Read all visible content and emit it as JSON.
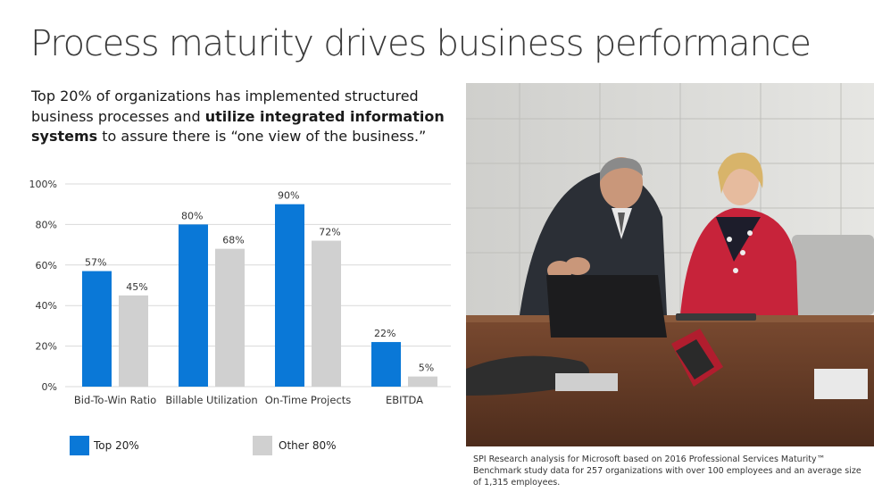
{
  "title": "Process maturity drives business performance",
  "subtitle": {
    "part1": "Top 20% of organizations has implemented structured business processes and ",
    "bold": "utilize integrated information systems",
    "part2": " to assure there is “one view of the business.”"
  },
  "chart_data": {
    "type": "bar",
    "categories": [
      "Bid-To-Win Ratio",
      "Billable Utilization",
      "On-Time Projects",
      "EBITDA"
    ],
    "series": [
      {
        "name": "Top 20%",
        "color": "#0a78d7",
        "values": [
          57,
          80,
          90,
          22
        ],
        "labels": [
          "57%",
          "80%",
          "90%",
          "22%"
        ]
      },
      {
        "name": "Other 80%",
        "color": "#d0d0d0",
        "values": [
          45,
          68,
          72,
          5
        ],
        "labels": [
          "45%",
          "68%",
          "72%",
          "5%"
        ]
      }
    ],
    "ylim": [
      0,
      100
    ],
    "yticks": [
      0,
      20,
      40,
      60,
      80,
      100
    ],
    "ytick_labels": [
      "0%",
      "20%",
      "40%",
      "60%",
      "80%",
      "100%"
    ],
    "grid": true,
    "legend_position": "bottom"
  },
  "footnote": "SPI Research analysis for Microsoft based on 2016 Professional Services Maturity™ Benchmark study data for 257 organizations with over 100 employees and an average size of 1,315 employees."
}
